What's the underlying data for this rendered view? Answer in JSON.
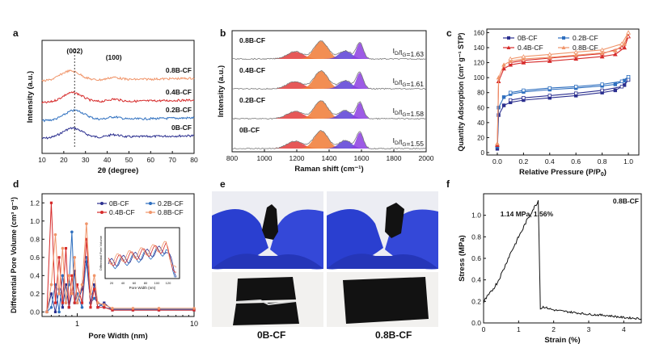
{
  "panels": {
    "a": "a",
    "b": "b",
    "c": "c",
    "d": "d",
    "e": "e",
    "f": "f"
  },
  "colors": {
    "s0": "#2b2f8f",
    "s02": "#2e6fbf",
    "s04": "#d62a2a",
    "s08": "#f0956a",
    "raman_orange": "#f07a35",
    "raman_red": "#e23b3b",
    "raman_blue": "#5a3fd6",
    "raman_purple": "#8c3ee0",
    "glove": "#2a3fd0",
    "cloth": "#121212"
  },
  "chart_data": [
    {
      "id": "a",
      "type": "line",
      "title": "",
      "xlabel": "2θ (degree)",
      "ylabel": "Intensity (a.u.)",
      "xlim": [
        10,
        80
      ],
      "xticks": [
        "10",
        "20",
        "30",
        "40",
        "50",
        "60",
        "70",
        "80"
      ],
      "annotations": [
        "(002)",
        "(100)"
      ],
      "series": [
        {
          "name": "0B-CF",
          "offset": 0,
          "peak": 24,
          "color": "#2b2f8f"
        },
        {
          "name": "0.2B-CF",
          "offset": 1,
          "peak": 25,
          "color": "#2e6fbf"
        },
        {
          "name": "0.4B-CF",
          "offset": 2,
          "peak": 24,
          "color": "#d62a2a"
        },
        {
          "name": "0.8B-CF",
          "offset": 3,
          "peak": 23,
          "color": "#f0956a"
        }
      ]
    },
    {
      "id": "b",
      "type": "line",
      "xlabel": "Raman shift (cm⁻¹)",
      "ylabel": "Intensity (a.u.)",
      "xlim": [
        800,
        2000
      ],
      "xticks": [
        "800",
        "1000",
        "1200",
        "1400",
        "1600",
        "1800",
        "2000"
      ],
      "series": [
        {
          "name": "0.8B-CF",
          "ratio": "I_D/I_G=1.63",
          "ratio_base": "I",
          "ratio_sub1": "D",
          "ratio_mid": "/I",
          "ratio_sub2": "G",
          "ratio_val": "=1.63"
        },
        {
          "name": "0.4B-CF",
          "ratio": "I_D/I_G=1.61",
          "ratio_base": "I",
          "ratio_sub1": "D",
          "ratio_mid": "/I",
          "ratio_sub2": "G",
          "ratio_val": "=1.61"
        },
        {
          "name": "0.2B-CF",
          "ratio": "I_D/I_G=1.58",
          "ratio_base": "I",
          "ratio_sub1": "D",
          "ratio_mid": "/I",
          "ratio_sub2": "G",
          "ratio_val": "=1.58"
        },
        {
          "name": "0B-CF",
          "ratio": "I_D/I_G=1.55",
          "ratio_base": "I",
          "ratio_sub1": "D",
          "ratio_mid": "/I",
          "ratio_sub2": "G",
          "ratio_val": "=1.55"
        }
      ],
      "bands": [
        1190,
        1350,
        1500,
        1590
      ]
    },
    {
      "id": "c",
      "type": "line",
      "xlabel": "Relative Pressure (P/P",
      "xlabel_sub": "0",
      "xlabel_end": ")",
      "ylabel": "Quantity Adsorption (cm³ g⁻¹ STP)",
      "xlim": [
        0,
        1.0
      ],
      "ylim": [
        0,
        160
      ],
      "xticks": [
        "0.0",
        "0.2",
        "0.4",
        "0.6",
        "0.8",
        "1.0"
      ],
      "yticks": [
        "0",
        "20",
        "40",
        "60",
        "80",
        "100",
        "120",
        "140",
        "160"
      ],
      "legend": [
        "0B-CF",
        "0.2B-CF",
        "0.4B-CF",
        "0.8B-CF"
      ],
      "series": [
        {
          "name": "0B-CF",
          "color": "#2b2f8f",
          "p": [
            [
              0,
              5
            ],
            [
              0.01,
              50
            ],
            [
              0.05,
              63
            ],
            [
              0.1,
              67
            ],
            [
              0.2,
              70
            ],
            [
              0.4,
              73
            ],
            [
              0.6,
              76
            ],
            [
              0.8,
              80
            ],
            [
              0.9,
              83
            ],
            [
              0.97,
              90
            ],
            [
              1.0,
              97
            ]
          ],
          "d": [
            [
              1.0,
              97
            ],
            [
              0.95,
              88
            ],
            [
              0.8,
              83
            ],
            [
              0.6,
              79
            ],
            [
              0.4,
              76
            ],
            [
              0.2,
              73
            ],
            [
              0.1,
              70
            ]
          ]
        },
        {
          "name": "0.2B-CF",
          "color": "#2e6fbf",
          "p": [
            [
              0,
              8
            ],
            [
              0.01,
              60
            ],
            [
              0.05,
              74
            ],
            [
              0.1,
              78
            ],
            [
              0.2,
              81
            ],
            [
              0.4,
              84
            ],
            [
              0.6,
              86
            ],
            [
              0.8,
              89
            ],
            [
              0.9,
              91
            ],
            [
              0.97,
              96
            ],
            [
              1.0,
              101
            ]
          ],
          "d": [
            [
              1.0,
              101
            ],
            [
              0.95,
              95
            ],
            [
              0.8,
              91
            ],
            [
              0.6,
              88
            ],
            [
              0.4,
              86
            ],
            [
              0.2,
              83
            ],
            [
              0.1,
              80
            ]
          ]
        },
        {
          "name": "0.4B-CF",
          "color": "#d62a2a",
          "p": [
            [
              0,
              10
            ],
            [
              0.01,
              95
            ],
            [
              0.05,
              112
            ],
            [
              0.1,
              117
            ],
            [
              0.2,
              120
            ],
            [
              0.4,
              122
            ],
            [
              0.6,
              125
            ],
            [
              0.8,
              128
            ],
            [
              0.9,
              131
            ],
            [
              0.97,
              140
            ],
            [
              1.0,
              155
            ]
          ],
          "d": [
            [
              1.0,
              155
            ],
            [
              0.95,
              140
            ],
            [
              0.8,
              132
            ],
            [
              0.6,
              129
            ],
            [
              0.4,
              126
            ],
            [
              0.2,
              123
            ],
            [
              0.1,
              120
            ]
          ]
        },
        {
          "name": "0.8B-CF",
          "color": "#f0956a",
          "p": [
            [
              0,
              12
            ],
            [
              0.01,
              100
            ],
            [
              0.05,
              117
            ],
            [
              0.1,
              122
            ],
            [
              0.2,
              125
            ],
            [
              0.4,
              127
            ],
            [
              0.6,
              130
            ],
            [
              0.8,
              133
            ],
            [
              0.9,
              136
            ],
            [
              0.97,
              145
            ],
            [
              1.0,
              160
            ]
          ],
          "d": [
            [
              1.0,
              160
            ],
            [
              0.95,
              145
            ],
            [
              0.8,
              137
            ],
            [
              0.6,
              134
            ],
            [
              0.4,
              131
            ],
            [
              0.2,
              128
            ],
            [
              0.1,
              125
            ]
          ]
        }
      ]
    },
    {
      "id": "d",
      "type": "line",
      "xlabel": "Pore Width (nm)",
      "ylabel": "Differential Pore Volume (cm³ g⁻¹)",
      "xscale": "log",
      "xlim": [
        0.5,
        10
      ],
      "ylim": [
        -0.05,
        1.3
      ],
      "xticks": [
        "1",
        "10"
      ],
      "yticks": [
        "0.0",
        "0.2",
        "0.4",
        "0.6",
        "0.8",
        "1.0",
        "1.2"
      ],
      "legend": [
        "0B-CF",
        "0.2B-CF",
        "0.4B-CF",
        "0.8B-CF"
      ],
      "inset": {
        "xlabel": "Pore Width (nm)",
        "ylabel": "Differential Pore Volume",
        "xticks": [
          "20",
          "40",
          "60",
          "80",
          "100",
          "120"
        ]
      },
      "series": [
        {
          "name": "0B-CF",
          "color": "#2b2f8f",
          "x": [
            0.55,
            0.6,
            0.65,
            0.7,
            0.75,
            0.8,
            0.85,
            0.9,
            0.95,
            1.0,
            1.1,
            1.2,
            1.3,
            1.4,
            1.5,
            1.7,
            2,
            3,
            5,
            10
          ],
          "y": [
            0,
            0.2,
            0,
            0.25,
            0.05,
            0.3,
            0.05,
            0.2,
            0.45,
            0.1,
            0.25,
            0.55,
            0.1,
            0.3,
            0.05,
            0.1,
            0.02,
            0.02,
            0.02,
            0.02
          ]
        },
        {
          "name": "0.2B-CF",
          "color": "#2e6fbf",
          "x": [
            0.55,
            0.6,
            0.65,
            0.7,
            0.75,
            0.8,
            0.85,
            0.9,
            0.95,
            1.0,
            1.1,
            1.2,
            1.3,
            1.4,
            1.5,
            1.7,
            2,
            3,
            5,
            10
          ],
          "y": [
            0,
            0.05,
            0.3,
            0,
            0.4,
            0.1,
            0.3,
            0.88,
            0.1,
            0.2,
            0.05,
            0.6,
            0.1,
            0.15,
            0.1,
            0.05,
            0.03,
            0.03,
            0.03,
            0.03
          ]
        },
        {
          "name": "0.4B-CF",
          "color": "#d62a2a",
          "x": [
            0.55,
            0.6,
            0.65,
            0.7,
            0.75,
            0.8,
            0.85,
            0.9,
            0.95,
            1.0,
            1.1,
            1.2,
            1.3,
            1.4,
            1.5,
            1.7,
            2,
            3,
            5,
            10
          ],
          "y": [
            0,
            1.2,
            0.1,
            0.6,
            0.1,
            0.7,
            0.05,
            0.4,
            0.1,
            0.3,
            0.1,
            0.8,
            0.05,
            0.25,
            0.05,
            0.05,
            0.02,
            0.02,
            0.02,
            0.02
          ]
        },
        {
          "name": "0.8B-CF",
          "color": "#f0956a",
          "x": [
            0.55,
            0.6,
            0.65,
            0.7,
            0.75,
            0.8,
            0.85,
            0.9,
            0.95,
            1.0,
            1.1,
            1.2,
            1.3,
            1.4,
            1.5,
            1.7,
            2,
            3,
            5,
            10
          ],
          "y": [
            0,
            0.3,
            0.85,
            0.2,
            0.7,
            0.1,
            0.4,
            0.2,
            0.6,
            0.1,
            0.3,
            0.97,
            0.2,
            0.4,
            0.1,
            0.08,
            0.04,
            0.04,
            0.04,
            0.04
          ]
        }
      ]
    },
    {
      "id": "f",
      "type": "line",
      "title": "0.8B-CF",
      "annotation": "1.14 MPa, 1.56%",
      "xlabel": "Strain (%)",
      "ylabel": "Stress (MPa)",
      "xlim": [
        0,
        4.5
      ],
      "ylim": [
        0,
        1.2
      ],
      "xticks": [
        "0",
        "1",
        "2",
        "3",
        "4"
      ],
      "yticks": [
        "0.0",
        "0.2",
        "0.4",
        "0.6",
        "0.8",
        "1.0"
      ],
      "x": [
        0,
        0.05,
        0.1,
        0.2,
        0.3,
        0.4,
        0.5,
        0.6,
        0.7,
        0.8,
        0.9,
        1.0,
        1.1,
        1.2,
        1.3,
        1.4,
        1.5,
        1.56,
        1.6,
        1.62,
        1.7,
        2.0,
        2.5,
        3.0,
        3.5,
        4.0,
        4.5
      ],
      "y": [
        0.18,
        0.22,
        0.24,
        0.28,
        0.33,
        0.38,
        0.45,
        0.52,
        0.6,
        0.67,
        0.73,
        0.8,
        0.86,
        0.93,
        0.99,
        1.05,
        1.1,
        1.14,
        0.5,
        0.13,
        0.15,
        0.12,
        0.1,
        0.08,
        0.07,
        0.05,
        0.04
      ]
    }
  ],
  "photos": {
    "left": "0B-CF",
    "right": "0.8B-CF"
  }
}
